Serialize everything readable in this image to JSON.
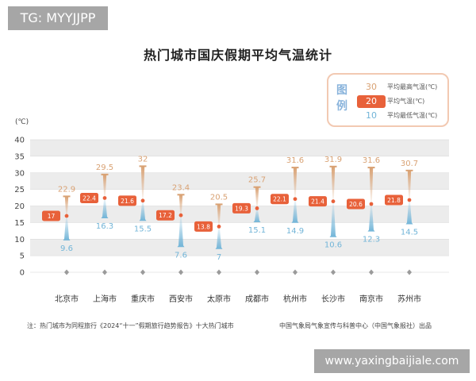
{
  "watermarks": {
    "top_left": "TG: MYYJJPP",
    "bottom_right": "www.yaxingbaijiale.com"
  },
  "title": "热门城市国庆假期平均气温统计",
  "unit_label": "(℃)",
  "legend": {
    "title": "图例",
    "items": [
      {
        "value": "30",
        "label": "平均最高气温(℃)"
      },
      {
        "value": "20",
        "label": "平均气温(℃)"
      },
      {
        "value": "10",
        "label": "平均最低气温(℃)"
      }
    ]
  },
  "note": "注：热门城市为同程旅行《2024“十一”假期旅行趋势报告》十大热门城市",
  "source": "中国气象局气象宣传与科普中心（中国气象报社）出品",
  "colors": {
    "high": "#d9a274",
    "avg": "#e8613a",
    "low": "#72b5d8",
    "band": "#ececec"
  },
  "chart_data": {
    "type": "range",
    "categories": [
      "北京市",
      "上海市",
      "重庆市",
      "西安市",
      "太原市",
      "成都市",
      "杭州市",
      "长沙市",
      "南京市",
      "苏州市"
    ],
    "series": [
      {
        "name": "平均最高气温(℃)",
        "values": [
          22.9,
          29.5,
          32,
          23.4,
          20.5,
          25.7,
          31.6,
          31.9,
          31.6,
          30.7
        ]
      },
      {
        "name": "平均气温(℃)",
        "values": [
          17,
          22.4,
          21.6,
          17.2,
          13.8,
          19.3,
          22.1,
          21.4,
          20.6,
          21.8
        ]
      },
      {
        "name": "平均最低气温(℃)",
        "values": [
          9.6,
          16.3,
          15.5,
          7.6,
          7,
          15.1,
          14.9,
          10.6,
          12.3,
          14.5
        ]
      }
    ],
    "high_labels": [
      "22.9",
      "29.5",
      "32",
      "23.4",
      "20.5",
      "25.7",
      "31.6",
      "31.9",
      "31.6",
      "30.7"
    ],
    "avg_labels": [
      "17",
      "22.4",
      "21.6",
      "17.2",
      "13.8",
      "19.3",
      "22.1",
      "21.4",
      "20.6",
      "21.8"
    ],
    "low_labels": [
      "9.6",
      "16.3",
      "15.5",
      "7.6",
      "7",
      "15.1",
      "14.9",
      "10.6",
      "12.3",
      "14.5"
    ],
    "y_ticks": [
      "0",
      "5",
      "10",
      "15",
      "20",
      "25",
      "30",
      "35",
      "40"
    ],
    "ylim": [
      0,
      40
    ],
    "ylabel": "(℃)",
    "grid": true,
    "legend_position": "top-right"
  }
}
